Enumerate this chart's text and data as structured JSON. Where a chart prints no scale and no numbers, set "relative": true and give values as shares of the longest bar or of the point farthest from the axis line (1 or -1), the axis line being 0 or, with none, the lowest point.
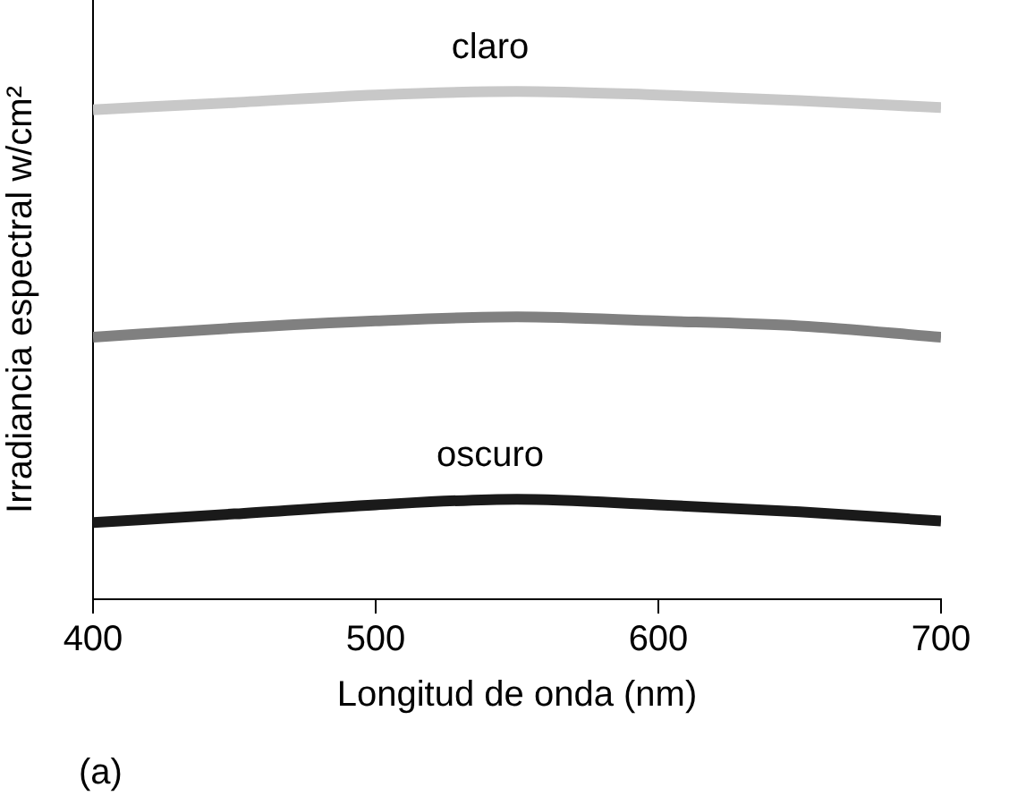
{
  "chart_data": {
    "type": "line",
    "xlabel": "Longitud de onda (nm)",
    "ylabel": "Irradiancia espectral w/cm²",
    "relative": true,
    "x": [
      400,
      450,
      500,
      550,
      600,
      650,
      700
    ],
    "xlim": [
      400,
      700
    ],
    "xticks": [
      400,
      500,
      600,
      700
    ],
    "series": [
      {
        "name": "claro",
        "color": "#c8c8c8",
        "values": [
          0.964,
          0.978,
          0.993,
          1,
          0.993,
          0.982,
          0.968
        ]
      },
      {
        "color": "#808080",
        "values": [
          0.516,
          0.534,
          0.548,
          0.556,
          0.548,
          0.538,
          0.516
        ]
      },
      {
        "name": "oscuro",
        "color": "#1a1a1a",
        "values": [
          0.151,
          0.168,
          0.186,
          0.197,
          0.186,
          0.172,
          0.154
        ]
      }
    ],
    "legend": false,
    "grid": false,
    "marker": "none",
    "line_style": "solid",
    "annotations": [
      "(a)"
    ]
  }
}
